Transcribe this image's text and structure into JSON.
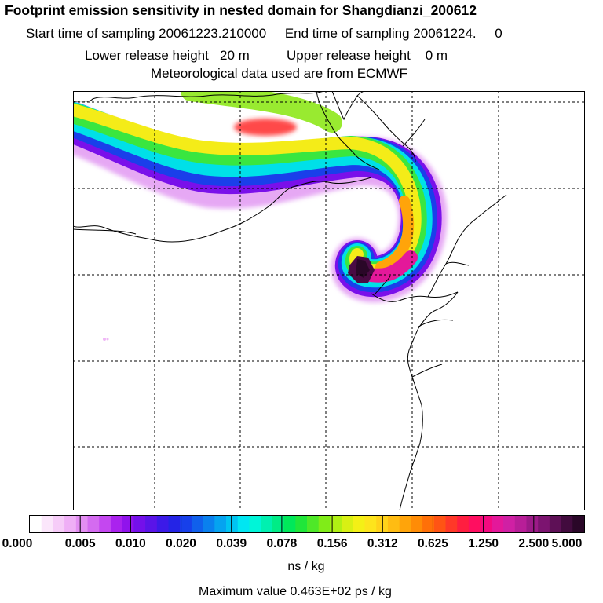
{
  "header": {
    "title": "Footprint emission sensitivity in nested domain for Shangdianzi_200612",
    "line1": "Start time of sampling 20061223.210000     End time of sampling 20061224.     0",
    "line2": "Lower release height   20 m          Upper release height    0 m",
    "line3": "Meteorological data used are from ECMWF"
  },
  "legend": {
    "ticks": [
      "0.000",
      "0.005",
      "0.010",
      "0.020",
      "0.039",
      "0.078",
      "0.156",
      "0.312",
      "0.625",
      "1.250",
      "2.500",
      "5.000"
    ],
    "colors": [
      "#ffffff",
      "#fbe6fb",
      "#f6ccf8",
      "#efaff6",
      "#e38ef2",
      "#d46bf0",
      "#c447f0",
      "#aa22ee",
      "#9013ec",
      "#7410ea",
      "#5a14e8",
      "#3c1ae8",
      "#2424e6",
      "#1740ea",
      "#1060ec",
      "#0a80ee",
      "#05a3f0",
      "#00c4f2",
      "#00e6f2",
      "#00f5d8",
      "#00f0b0",
      "#00ec86",
      "#00e85a",
      "#20e63a",
      "#4ee828",
      "#80ec18",
      "#b0f014",
      "#d8f014",
      "#f4f016",
      "#fde41c",
      "#ffd21a",
      "#ffbc12",
      "#ffa40a",
      "#ff8c06",
      "#ff7008",
      "#ff5414",
      "#ff3828",
      "#ff1e40",
      "#ff0e60",
      "#f40a80",
      "#e4189a",
      "#d020a4",
      "#b81e98",
      "#9c1a88",
      "#7c1470",
      "#5e1056",
      "#420b3e",
      "#2a0728"
    ],
    "unit": "ns / kg",
    "max_text": "Maximum value  0.463E+02 ps / kg"
  }
}
